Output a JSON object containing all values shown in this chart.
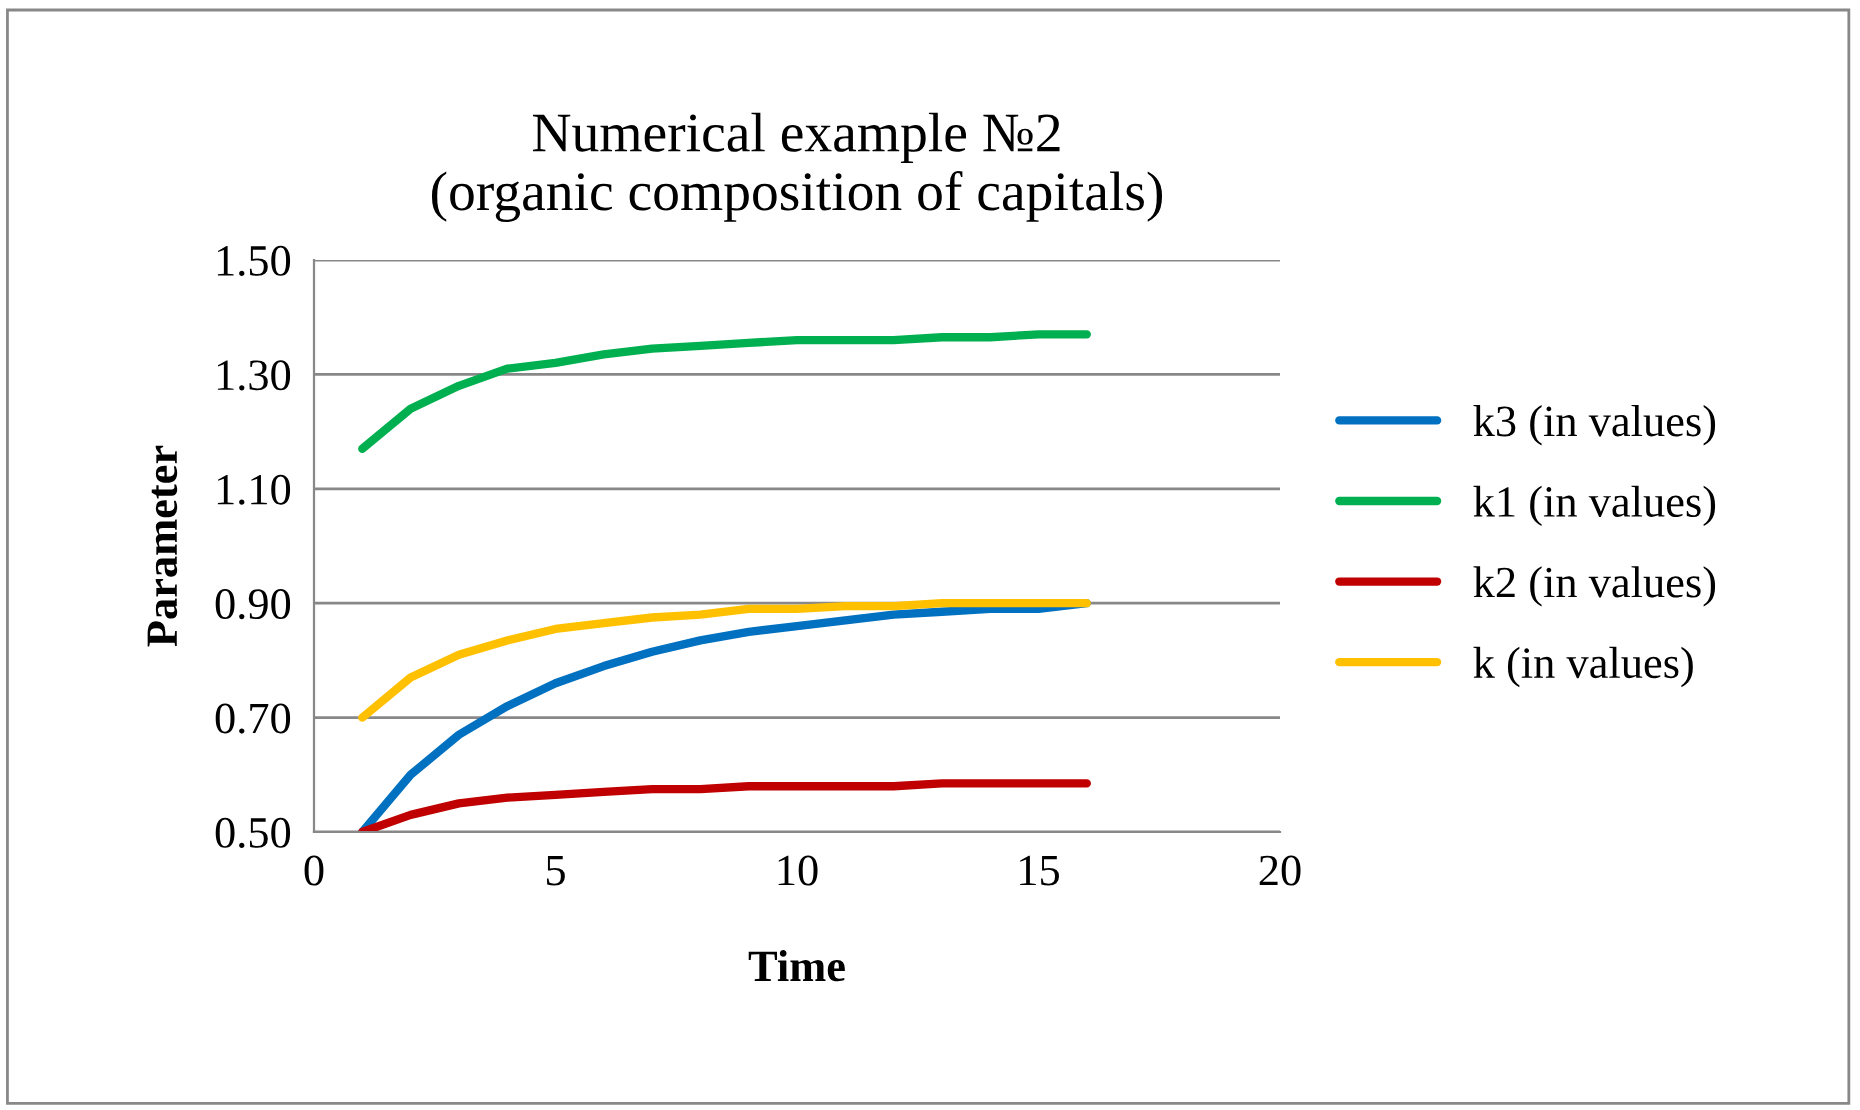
{
  "chart_data": {
    "type": "line",
    "title": "Numerical example №2\n(organic composition of capitals)",
    "xlabel": "Time",
    "ylabel": "Parameter",
    "x": [
      1,
      2,
      3,
      4,
      5,
      6,
      7,
      8,
      9,
      10,
      11,
      12,
      13,
      14,
      15,
      16
    ],
    "series": [
      {
        "name": "k3 (in values)",
        "color": "#0070c0",
        "values": [
          0.5,
          0.6,
          0.67,
          0.72,
          0.76,
          0.79,
          0.815,
          0.835,
          0.85,
          0.86,
          0.87,
          0.88,
          0.885,
          0.89,
          0.89,
          0.9
        ]
      },
      {
        "name": "k1 (in values)",
        "color": "#00b050",
        "values": [
          1.17,
          1.24,
          1.28,
          1.31,
          1.32,
          1.335,
          1.345,
          1.35,
          1.355,
          1.36,
          1.36,
          1.36,
          1.365,
          1.365,
          1.37,
          1.37
        ]
      },
      {
        "name": "k2 (in values)",
        "color": "#c00000",
        "values": [
          0.5,
          0.53,
          0.55,
          0.56,
          0.565,
          0.57,
          0.575,
          0.575,
          0.58,
          0.58,
          0.58,
          0.58,
          0.585,
          0.585,
          0.585,
          0.585
        ]
      },
      {
        "name": "k (in values)",
        "color": "#ffc000",
        "values": [
          0.7,
          0.77,
          0.81,
          0.835,
          0.855,
          0.865,
          0.875,
          0.88,
          0.89,
          0.89,
          0.895,
          0.895,
          0.9,
          0.9,
          0.9,
          0.9
        ]
      }
    ],
    "xlim": [
      0,
      20
    ],
    "xticks": [
      0,
      5,
      10,
      15,
      20
    ],
    "ylim": [
      0.5,
      1.5
    ],
    "yticks": [
      {
        "value": 0.5,
        "label": "0.50"
      },
      {
        "value": 0.7,
        "label": "0.70"
      },
      {
        "value": 0.9,
        "label": "0.90"
      },
      {
        "value": 1.1,
        "label": "1.10"
      },
      {
        "value": 1.3,
        "label": "1.30"
      },
      {
        "value": 1.5,
        "label": "1.50"
      }
    ],
    "grid": "y",
    "legend": "right",
    "marker": "none",
    "line_style": "solid"
  }
}
